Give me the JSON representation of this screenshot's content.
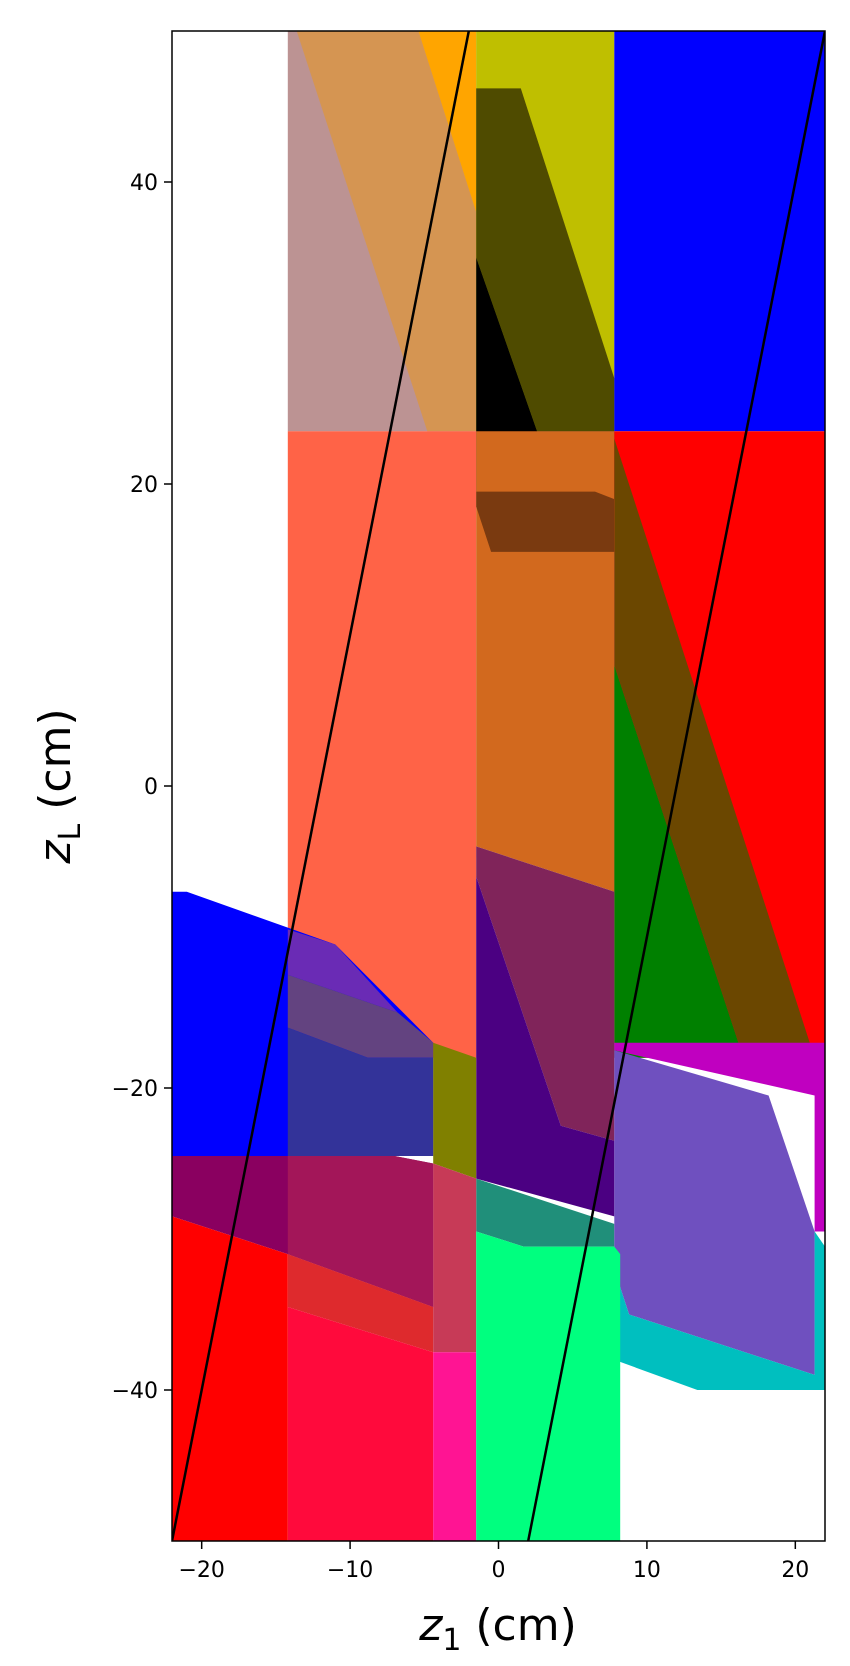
{
  "chart_data": {
    "type": "area",
    "xlabel": {
      "var": "z",
      "sub": "1",
      "unit": " (cm)"
    },
    "ylabel": {
      "var": "z",
      "sub": "L",
      "unit": " (cm)"
    },
    "xlim": [
      -22,
      22
    ],
    "ylim": [
      -50,
      50
    ],
    "xticks": [
      -20,
      -10,
      0,
      10,
      20
    ],
    "yticks": [
      -40,
      -20,
      0,
      20,
      40
    ],
    "xtick_labels": [
      "−20",
      "−10",
      "0",
      "10",
      "20"
    ],
    "ytick_labels": [
      "−40",
      "−20",
      "0",
      "20",
      "40"
    ],
    "grid": false,
    "regions": [
      {
        "color": "#bc9393",
        "points": [
          [
            -14.2,
            23.5
          ],
          [
            -14.2,
            50
          ],
          [
            -1.5,
            50
          ],
          [
            -1.5,
            23.5
          ]
        ]
      },
      {
        "color": "#d59552",
        "points": [
          [
            -13.6,
            50
          ],
          [
            -5.4,
            50
          ],
          [
            -1.5,
            38
          ],
          [
            -1.5,
            23.5
          ],
          [
            -4.8,
            23.5
          ]
        ]
      },
      {
        "color": "#ffa500",
        "points": [
          [
            -5.4,
            50
          ],
          [
            -1.5,
            50
          ],
          [
            -1.5,
            38
          ]
        ]
      },
      {
        "color": "#bfbf00",
        "points": [
          [
            -1.5,
            50
          ],
          [
            7.8,
            50
          ],
          [
            7.8,
            23.5
          ],
          [
            -1.5,
            23.5
          ]
        ]
      },
      {
        "color": "#4f4b00",
        "points": [
          [
            -1.5,
            46.2
          ],
          [
            1.5,
            46.2
          ],
          [
            7.8,
            27
          ],
          [
            7.8,
            23.5
          ],
          [
            2.6,
            23.5
          ],
          [
            -1.5,
            35
          ]
        ]
      },
      {
        "color": "#000000",
        "points": [
          [
            -1.5,
            35
          ],
          [
            2.6,
            23.5
          ],
          [
            7.8,
            23.5
          ],
          [
            7.8,
            19
          ],
          [
            -1.5,
            19.5
          ]
        ]
      },
      {
        "color": "#0000ff",
        "points": [
          [
            7.8,
            50
          ],
          [
            22,
            50
          ],
          [
            22,
            23.5
          ],
          [
            7.8,
            23.5
          ]
        ]
      },
      {
        "color": "#ff6347",
        "points": [
          [
            -14.2,
            23.5
          ],
          [
            -1.5,
            23.5
          ],
          [
            -1.5,
            -18
          ],
          [
            -14.2,
            -18
          ]
        ]
      },
      {
        "color": "#d2691e",
        "points": [
          [
            -1.5,
            23.5
          ],
          [
            7.8,
            23.5
          ],
          [
            7.8,
            -7
          ],
          [
            -1.5,
            -4
          ]
        ]
      },
      {
        "color": "#7a3a10",
        "points": [
          [
            -1.5,
            19.5
          ],
          [
            6.5,
            19.5
          ],
          [
            7.8,
            19
          ],
          [
            7.8,
            15.5
          ],
          [
            -0.5,
            15.5
          ],
          [
            -1.5,
            18.5
          ]
        ]
      },
      {
        "color": "#ff0000",
        "points": [
          [
            7.8,
            23.5
          ],
          [
            22,
            23.5
          ],
          [
            22,
            -18
          ],
          [
            7.8,
            -18
          ]
        ]
      },
      {
        "color": "#008000",
        "points": [
          [
            7.8,
            8
          ],
          [
            7.8,
            -18
          ],
          [
            16.5,
            -18
          ]
        ]
      },
      {
        "color": "#6b4700",
        "points": [
          [
            7.8,
            23
          ],
          [
            7.8,
            8
          ],
          [
            16.5,
            -18
          ],
          [
            21.3,
            -18
          ]
        ]
      },
      {
        "color": "#80245a",
        "points": [
          [
            -1.5,
            -4
          ],
          [
            7.8,
            -7
          ],
          [
            7.8,
            -23.5
          ],
          [
            4.2,
            -22.5
          ],
          [
            -1.5,
            -6
          ]
        ]
      },
      {
        "color": "#4b0082",
        "points": [
          [
            -1.5,
            -6
          ],
          [
            4.2,
            -22.5
          ],
          [
            7.8,
            -23.5
          ],
          [
            7.8,
            -28.5
          ],
          [
            -1.5,
            -26
          ]
        ]
      },
      {
        "color": "#0000ff",
        "points": [
          [
            -22,
            -7
          ],
          [
            -21,
            -7
          ],
          [
            -11,
            -10.5
          ],
          [
            -4.4,
            -17
          ],
          [
            -4.4,
            -24.5
          ],
          [
            -22,
            -24.5
          ]
        ]
      },
      {
        "color": "#6a2bb5",
        "points": [
          [
            -14.2,
            -9.5
          ],
          [
            -11,
            -10.5
          ],
          [
            -6.8,
            -15
          ],
          [
            -14.2,
            -12.5
          ]
        ]
      },
      {
        "color": "#634380",
        "points": [
          [
            -14.2,
            -12.5
          ],
          [
            -6.8,
            -15
          ],
          [
            -4.4,
            -17
          ],
          [
            -4.4,
            -18
          ],
          [
            -8.8,
            -18
          ],
          [
            -14.2,
            -16
          ]
        ]
      },
      {
        "color": "#333399",
        "points": [
          [
            -14.2,
            -16
          ],
          [
            -8.8,
            -18
          ],
          [
            -4.4,
            -18
          ],
          [
            -4.4,
            -24.5
          ],
          [
            -14.2,
            -24.5
          ]
        ]
      },
      {
        "color": "#808000",
        "points": [
          [
            -4.4,
            -17
          ],
          [
            -1.5,
            -18
          ],
          [
            -1.5,
            -26
          ],
          [
            -4.4,
            -25
          ]
        ]
      },
      {
        "color": "#208f7a",
        "points": [
          [
            -1.5,
            -26
          ],
          [
            7.8,
            -29
          ],
          [
            7.8,
            -30.5
          ],
          [
            1.7,
            -30.5
          ],
          [
            -1.5,
            -29.5
          ]
        ]
      },
      {
        "color": "#c000c0",
        "points": [
          [
            7.8,
            -17
          ],
          [
            22,
            -17
          ],
          [
            22,
            -29.5
          ],
          [
            21.3,
            -29.5
          ],
          [
            21.3,
            -20.5
          ],
          [
            7.8,
            -17.5
          ]
        ]
      },
      {
        "color": "#6f50bf",
        "points": [
          [
            7.8,
            -17.5
          ],
          [
            18.2,
            -20.5
          ],
          [
            21.3,
            -29.5
          ],
          [
            21.3,
            -39
          ],
          [
            8.8,
            -35
          ],
          [
            7.8,
            -32
          ]
        ]
      },
      {
        "color": "#00bfbf",
        "points": [
          [
            7.8,
            -32
          ],
          [
            8.8,
            -35
          ],
          [
            21.3,
            -39
          ],
          [
            21.3,
            -29.5
          ],
          [
            22,
            -30.5
          ],
          [
            22,
            -40
          ],
          [
            13.4,
            -40
          ],
          [
            7.8,
            -38
          ]
        ]
      },
      {
        "color": "#8a0060",
        "points": [
          [
            -22,
            -24.5
          ],
          [
            -7,
            -24.5
          ],
          [
            -4.4,
            -25
          ],
          [
            -4.4,
            -34.5
          ],
          [
            -14.2,
            -31
          ],
          [
            -22,
            -28.5
          ]
        ]
      },
      {
        "color": "#a31659",
        "points": [
          [
            -14.2,
            -24.5
          ],
          [
            -7,
            -24.5
          ],
          [
            -4.4,
            -25
          ],
          [
            -4.4,
            -34.5
          ],
          [
            -14.2,
            -31
          ]
        ]
      },
      {
        "color": "#c73a57",
        "points": [
          [
            -4.4,
            -25
          ],
          [
            -1.5,
            -26
          ],
          [
            -1.5,
            -37.5
          ],
          [
            -4.4,
            -37.5
          ]
        ]
      },
      {
        "color": "#ff0000",
        "points": [
          [
            -22,
            -28.5
          ],
          [
            -14.2,
            -31
          ],
          [
            -14.2,
            -50
          ],
          [
            -22,
            -50
          ]
        ]
      },
      {
        "color": "#de2a2d",
        "points": [
          [
            -14.2,
            -31
          ],
          [
            -4.4,
            -34.5
          ],
          [
            -4.4,
            -37.5
          ],
          [
            -14.2,
            -34.5
          ]
        ]
      },
      {
        "color": "#ff0a3c",
        "points": [
          [
            -14.2,
            -34.5
          ],
          [
            -4.4,
            -37.5
          ],
          [
            -4.4,
            -50
          ],
          [
            -14.2,
            -50
          ]
        ]
      },
      {
        "color": "#ff1493",
        "points": [
          [
            -4.4,
            -37.5
          ],
          [
            -1.5,
            -37.5
          ],
          [
            -1.5,
            -50
          ],
          [
            -4.4,
            -50
          ]
        ]
      },
      {
        "color": "#00ff7f",
        "points": [
          [
            -1.5,
            -29.5
          ],
          [
            1.7,
            -30.5
          ],
          [
            7.8,
            -30.5
          ],
          [
            8.2,
            -31
          ],
          [
            8.2,
            -50
          ],
          [
            -1.5,
            -50
          ]
        ]
      }
    ],
    "lines": [
      {
        "color": "#000000",
        "points": [
          [
            -22,
            -50
          ],
          [
            -2,
            50
          ]
        ]
      },
      {
        "color": "#000000",
        "points": [
          [
            2,
            -50
          ],
          [
            22,
            50
          ]
        ]
      }
    ]
  }
}
